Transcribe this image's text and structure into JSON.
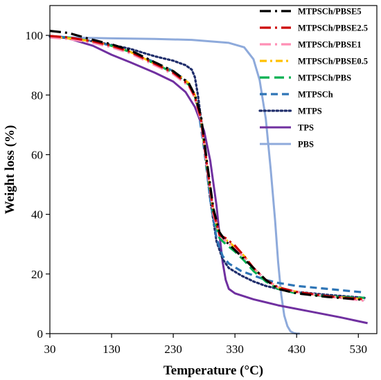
{
  "chart_data": {
    "type": "line",
    "title": "",
    "xlabel": "Temperature (°C)",
    "ylabel": "Weight loss (%)",
    "xlim": [
      30,
      560
    ],
    "ylim": [
      0,
      110
    ],
    "xticks": [
      30,
      130,
      230,
      330,
      430,
      530
    ],
    "yticks": [
      0,
      20,
      40,
      60,
      80,
      100
    ],
    "x_tick_labels": [
      "30",
      "130",
      "230",
      "330",
      "430",
      "530"
    ],
    "y_tick_labels": [
      "0",
      "20",
      "40",
      "60",
      "80",
      "100"
    ],
    "grid": false,
    "legend_position": "top-right",
    "series": [
      {
        "name": "MTPSCh/PBSE5",
        "color": "#000000",
        "dash": "long-dash-dot",
        "x": [
          30,
          60,
          100,
          130,
          160,
          200,
          230,
          255,
          265,
          275,
          285,
          295,
          305,
          315,
          330,
          345,
          360,
          380,
          400,
          430,
          480,
          540
        ],
        "y": [
          101.5,
          100.8,
          98.5,
          97,
          95,
          91,
          88,
          84,
          80,
          73,
          57,
          42,
          34,
          31,
          28,
          25,
          22,
          18,
          15,
          13.5,
          12.3,
          11.3
        ]
      },
      {
        "name": "MTPSCh/PBSE2.5",
        "color": "#cc0000",
        "dash": "long-dash-dot",
        "x": [
          30,
          60,
          100,
          130,
          160,
          200,
          230,
          255,
          265,
          275,
          285,
          295,
          305,
          315,
          330,
          345,
          360,
          380,
          400,
          430,
          480,
          540
        ],
        "y": [
          99.8,
          99.3,
          98,
          96.5,
          94.5,
          90.5,
          87.5,
          83.5,
          79.5,
          72,
          56,
          41,
          33,
          32,
          29.5,
          26,
          22,
          18,
          15.5,
          14,
          12.5,
          11.5
        ]
      },
      {
        "name": "MTPSCh/PBSE1",
        "color": "#ff8fb5",
        "dash": "long-dash-dot",
        "x": [
          30,
          60,
          100,
          130,
          160,
          200,
          230,
          255,
          265,
          275,
          285,
          295,
          305,
          315,
          330,
          345,
          360,
          380,
          400,
          430,
          480,
          540
        ],
        "y": [
          99.3,
          98.8,
          97.5,
          96,
          94,
          90,
          87,
          83,
          79,
          71,
          55,
          40,
          33,
          31,
          28.5,
          25.5,
          22,
          18,
          15.5,
          14,
          12.5,
          11
        ]
      },
      {
        "name": "MTPSCh/PBSE0.5",
        "color": "#ffc000",
        "dash": "dash-dot",
        "x": [
          30,
          60,
          100,
          130,
          160,
          200,
          230,
          255,
          265,
          275,
          285,
          295,
          305,
          315,
          330,
          345,
          360,
          380,
          400,
          430,
          480,
          540
        ],
        "y": [
          99.5,
          99,
          98,
          96.5,
          94.5,
          90.5,
          88,
          84,
          80,
          72,
          56,
          41,
          33,
          31.5,
          29,
          26,
          22,
          18,
          15.5,
          14,
          12.5,
          11.5
        ]
      },
      {
        "name": "MTPSCh/PBS",
        "color": "#00b050",
        "dash": "long-dash",
        "x": [
          30,
          60,
          100,
          130,
          160,
          200,
          230,
          255,
          265,
          275,
          285,
          295,
          305,
          315,
          330,
          345,
          360,
          380,
          400,
          430,
          480,
          540
        ],
        "y": [
          99.7,
          99.2,
          98,
          96.5,
          94.5,
          90.5,
          87.5,
          83.5,
          79.5,
          71.5,
          55,
          40,
          32,
          30,
          27.5,
          24.5,
          21,
          17.5,
          15,
          13.5,
          12.5,
          12
        ]
      },
      {
        "name": "MTPSCh",
        "color": "#2e75b6",
        "dash": "dash",
        "x": [
          30,
          60,
          100,
          130,
          160,
          200,
          230,
          250,
          260,
          270,
          280,
          290,
          300,
          310,
          320,
          340,
          360,
          380,
          400,
          430,
          480,
          540
        ],
        "y": [
          99.8,
          99.3,
          98,
          96.5,
          94.5,
          91,
          88,
          85,
          82,
          76,
          62,
          45,
          32,
          26,
          23.5,
          21,
          19.5,
          18,
          17,
          16,
          15,
          13.8
        ]
      },
      {
        "name": "MTPS",
        "color": "#1f2d6b",
        "dash": "dot",
        "x": [
          30,
          60,
          100,
          130,
          160,
          200,
          230,
          250,
          260,
          265,
          270,
          280,
          290,
          300,
          310,
          320,
          340,
          360,
          380,
          400,
          430,
          480,
          540
        ],
        "y": [
          99.6,
          99.2,
          98,
          96.8,
          95.5,
          93,
          91.5,
          90,
          88.5,
          86,
          80,
          64,
          45,
          31,
          25,
          22,
          19.5,
          17.5,
          16,
          15,
          14,
          13,
          12
        ]
      },
      {
        "name": "TPS",
        "color": "#7030a0",
        "dash": "solid",
        "x": [
          30,
          60,
          100,
          130,
          160,
          200,
          230,
          250,
          265,
          280,
          290,
          300,
          305,
          310,
          315,
          320,
          330,
          360,
          400,
          450,
          500,
          545
        ],
        "y": [
          99.8,
          99,
          96.5,
          93.5,
          91,
          87.5,
          84.5,
          81,
          76,
          68,
          58,
          43,
          33,
          24,
          18,
          15,
          13.5,
          11.5,
          9.5,
          7.5,
          5.5,
          3.5
        ]
      },
      {
        "name": "PBS",
        "color": "#8eaadb",
        "dash": "solid",
        "x": [
          30,
          80,
          130,
          200,
          260,
          320,
          345,
          360,
          370,
          380,
          388,
          395,
          400,
          405,
          410,
          415,
          420,
          425,
          430,
          435
        ],
        "y": [
          99.5,
          99.2,
          99,
          98.8,
          98.5,
          97.5,
          96,
          92,
          85,
          72,
          55,
          38,
          24,
          13,
          6,
          2.5,
          0.8,
          0.2,
          0,
          0
        ]
      }
    ]
  }
}
